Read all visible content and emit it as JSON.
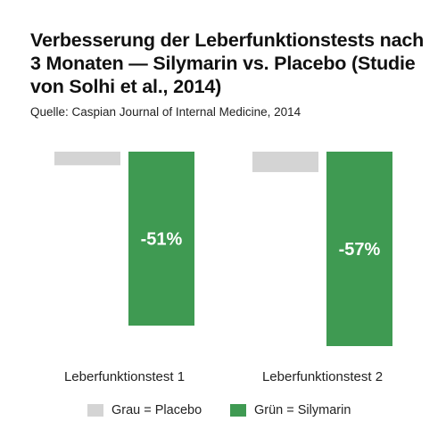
{
  "chart_data": {
    "type": "bar",
    "title": "Verbesserung der Leberfunktionstests nach 3 Monaten — Silymarin vs. Placebo (Studie von Solhi et al., 2014)",
    "subtitle": "Quelle: Caspian Journal of Internal Medicine, 2014",
    "categories": [
      "Leberfunktionstest 1",
      "Leberfunktionstest 2"
    ],
    "series": [
      {
        "name": "Placebo",
        "values": [
          -4,
          -6
        ],
        "color": "#d4d4d4"
      },
      {
        "name": "Silymarin",
        "values": [
          -51,
          -57
        ],
        "color": "#3f9a52",
        "labels": [
          "-51%",
          "-57%"
        ]
      }
    ],
    "ylim": [
      -60,
      0
    ],
    "grid": false,
    "legend_position": "bottom",
    "legend": [
      {
        "label": "Grau = Placebo",
        "color": "#d4d4d4"
      },
      {
        "label": "Grün = Silymarin",
        "color": "#3f9a52"
      }
    ]
  }
}
